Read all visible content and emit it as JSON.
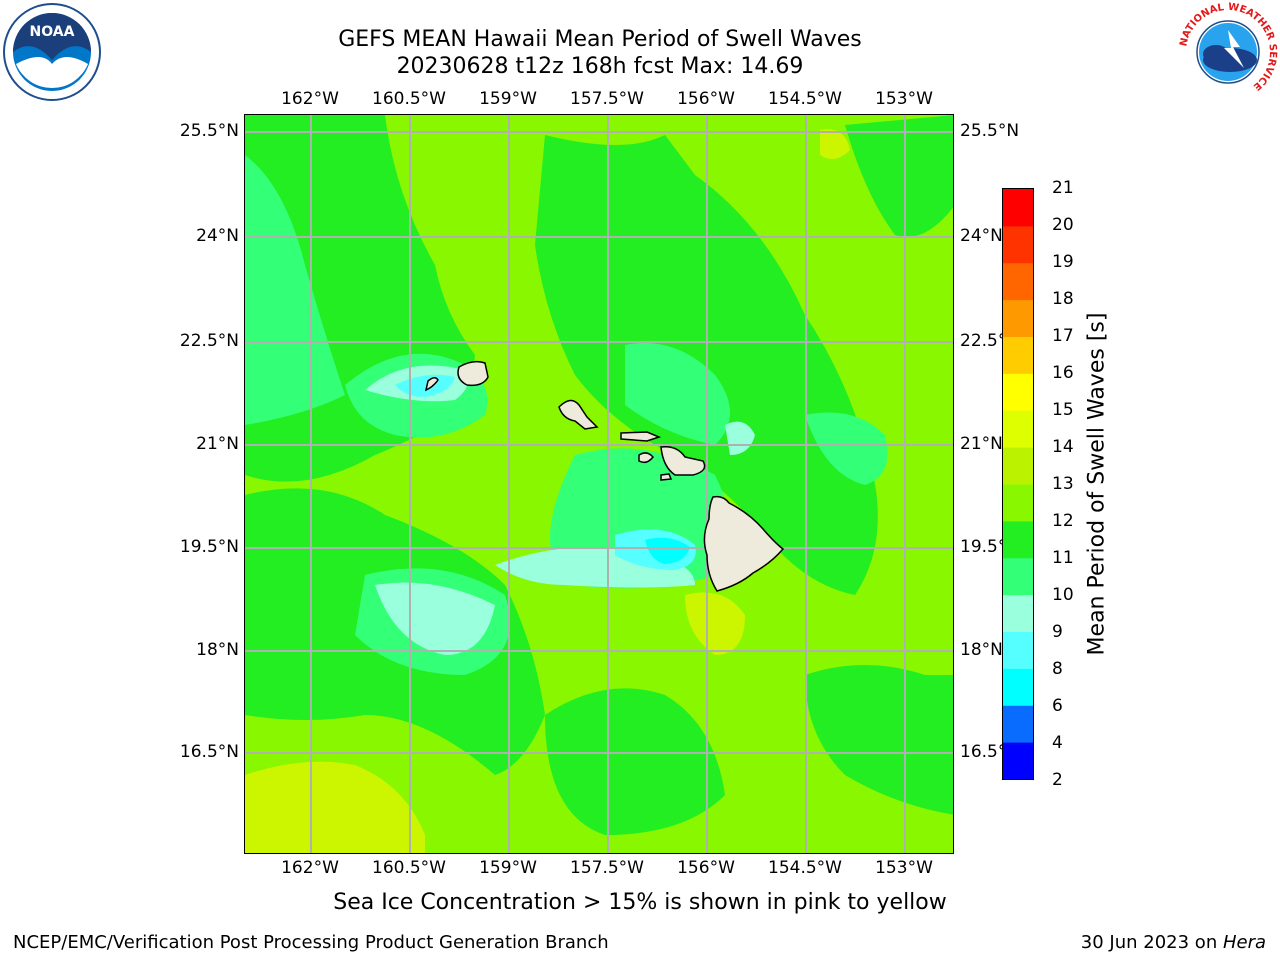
{
  "title": {
    "line1": "GEFS MEAN Hawaii Mean Period of Swell Waves",
    "line2": "20230628 t12z 168h fcst   Max: 14.69"
  },
  "axes": {
    "lon_ticks": [
      "162°W",
      "160.5°W",
      "159°W",
      "157.5°W",
      "156°W",
      "154.5°W",
      "153°W"
    ],
    "lat_ticks": [
      "25.5°N",
      "24°N",
      "22.5°N",
      "21°N",
      "19.5°N",
      "18°N",
      "16.5°N"
    ]
  },
  "colorbar": {
    "title": "Mean Period of Swell Waves [s]",
    "levels": [
      "2",
      "4",
      "6",
      "8",
      "9",
      "10",
      "11",
      "12",
      "13",
      "14",
      "15",
      "16",
      "17",
      "18",
      "19",
      "20",
      "21"
    ],
    "colors": [
      "#0000ff",
      "#0a6cff",
      "#00ffff",
      "#55ffff",
      "#99ffdd",
      "#33ff77",
      "#22ee22",
      "#88f700",
      "#bbf200",
      "#ddff00",
      "#ffff00",
      "#ffcc00",
      "#ff9900",
      "#ff6600",
      "#ff3300",
      "#ff0000"
    ]
  },
  "note": "Sea Ice Concentration > 15% is shown in pink to yellow",
  "footer": {
    "left": "NCEP/EMC/Verification Post Processing Product Generation Branch",
    "right_prefix": "30 Jun 2023 on ",
    "right_host": "Hera"
  },
  "logos": {
    "left": "NOAA",
    "right_ring": "NATIONAL WEATHER SERVICE"
  }
}
